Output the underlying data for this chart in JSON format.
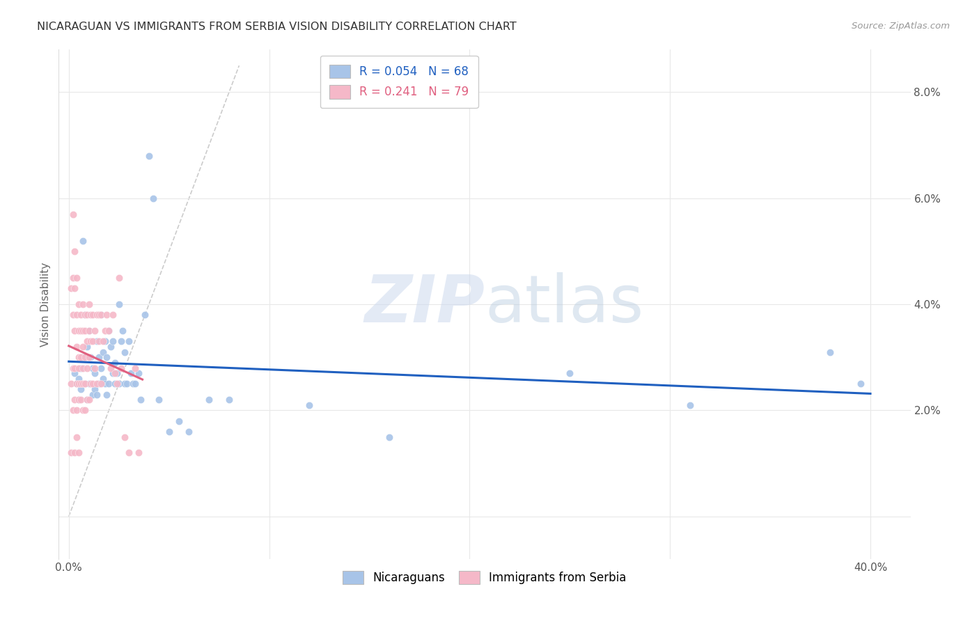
{
  "title": "NICARAGUAN VS IMMIGRANTS FROM SERBIA VISION DISABILITY CORRELATION CHART",
  "source": "Source: ZipAtlas.com",
  "ylabel": "Vision Disability",
  "yticks": [
    0.0,
    0.02,
    0.04,
    0.06,
    0.08
  ],
  "ytick_labels": [
    "",
    "2.0%",
    "4.0%",
    "6.0%",
    "8.0%"
  ],
  "xticks": [
    0.0,
    0.1,
    0.2,
    0.3,
    0.4
  ],
  "xtick_labels": [
    "0.0%",
    "",
    "",
    "",
    "40.0%"
  ],
  "xlim": [
    -0.005,
    0.42
  ],
  "ylim": [
    -0.008,
    0.088
  ],
  "legend_blue_R": "R = 0.054",
  "legend_blue_N": "N = 68",
  "legend_pink_R": "R = 0.241",
  "legend_pink_N": "N = 79",
  "blue_color": "#a8c4e8",
  "pink_color": "#f5b8c8",
  "blue_line_color": "#2060c0",
  "pink_line_color": "#e06080",
  "diag_line_color": "#cccccc",
  "background_color": "#ffffff",
  "grid_color": "#e8e8e8",
  "blue_scatter_x": [
    0.003,
    0.004,
    0.005,
    0.005,
    0.006,
    0.006,
    0.007,
    0.007,
    0.008,
    0.008,
    0.009,
    0.009,
    0.01,
    0.01,
    0.011,
    0.011,
    0.012,
    0.012,
    0.013,
    0.013,
    0.014,
    0.014,
    0.015,
    0.015,
    0.016,
    0.016,
    0.017,
    0.017,
    0.018,
    0.018,
    0.019,
    0.019,
    0.02,
    0.02,
    0.021,
    0.022,
    0.022,
    0.023,
    0.023,
    0.024,
    0.025,
    0.025,
    0.026,
    0.027,
    0.028,
    0.028,
    0.029,
    0.03,
    0.031,
    0.032,
    0.033,
    0.035,
    0.036,
    0.038,
    0.04,
    0.042,
    0.045,
    0.05,
    0.055,
    0.06,
    0.07,
    0.08,
    0.12,
    0.16,
    0.25,
    0.31,
    0.38,
    0.395
  ],
  "blue_scatter_y": [
    0.027,
    0.025,
    0.026,
    0.022,
    0.028,
    0.024,
    0.052,
    0.03,
    0.038,
    0.025,
    0.032,
    0.022,
    0.035,
    0.025,
    0.03,
    0.025,
    0.028,
    0.023,
    0.027,
    0.024,
    0.033,
    0.023,
    0.03,
    0.025,
    0.038,
    0.028,
    0.031,
    0.026,
    0.033,
    0.025,
    0.03,
    0.023,
    0.035,
    0.025,
    0.032,
    0.033,
    0.027,
    0.029,
    0.025,
    0.027,
    0.04,
    0.025,
    0.033,
    0.035,
    0.031,
    0.025,
    0.025,
    0.033,
    0.027,
    0.025,
    0.025,
    0.027,
    0.022,
    0.038,
    0.068,
    0.06,
    0.022,
    0.016,
    0.018,
    0.016,
    0.022,
    0.022,
    0.021,
    0.015,
    0.027,
    0.021,
    0.031,
    0.025
  ],
  "pink_scatter_x": [
    0.001,
    0.001,
    0.001,
    0.002,
    0.002,
    0.002,
    0.002,
    0.002,
    0.003,
    0.003,
    0.003,
    0.003,
    0.003,
    0.003,
    0.004,
    0.004,
    0.004,
    0.004,
    0.004,
    0.004,
    0.005,
    0.005,
    0.005,
    0.005,
    0.005,
    0.005,
    0.005,
    0.006,
    0.006,
    0.006,
    0.006,
    0.006,
    0.007,
    0.007,
    0.007,
    0.007,
    0.007,
    0.007,
    0.008,
    0.008,
    0.008,
    0.008,
    0.008,
    0.009,
    0.009,
    0.009,
    0.009,
    0.01,
    0.01,
    0.01,
    0.01,
    0.011,
    0.011,
    0.011,
    0.012,
    0.012,
    0.012,
    0.013,
    0.013,
    0.014,
    0.014,
    0.015,
    0.015,
    0.016,
    0.016,
    0.017,
    0.018,
    0.019,
    0.02,
    0.021,
    0.022,
    0.023,
    0.024,
    0.025,
    0.026,
    0.028,
    0.03,
    0.033,
    0.035
  ],
  "pink_scatter_y": [
    0.043,
    0.025,
    0.012,
    0.057,
    0.045,
    0.038,
    0.028,
    0.02,
    0.05,
    0.043,
    0.035,
    0.028,
    0.022,
    0.012,
    0.045,
    0.038,
    0.032,
    0.025,
    0.02,
    0.015,
    0.04,
    0.035,
    0.03,
    0.028,
    0.025,
    0.022,
    0.012,
    0.038,
    0.035,
    0.03,
    0.025,
    0.022,
    0.04,
    0.035,
    0.032,
    0.028,
    0.025,
    0.02,
    0.038,
    0.035,
    0.03,
    0.025,
    0.02,
    0.038,
    0.033,
    0.028,
    0.022,
    0.04,
    0.035,
    0.03,
    0.022,
    0.038,
    0.033,
    0.025,
    0.038,
    0.033,
    0.025,
    0.035,
    0.028,
    0.038,
    0.025,
    0.038,
    0.033,
    0.038,
    0.025,
    0.033,
    0.035,
    0.038,
    0.035,
    0.028,
    0.038,
    0.027,
    0.025,
    0.045,
    0.028,
    0.015,
    0.012,
    0.028,
    0.012
  ]
}
